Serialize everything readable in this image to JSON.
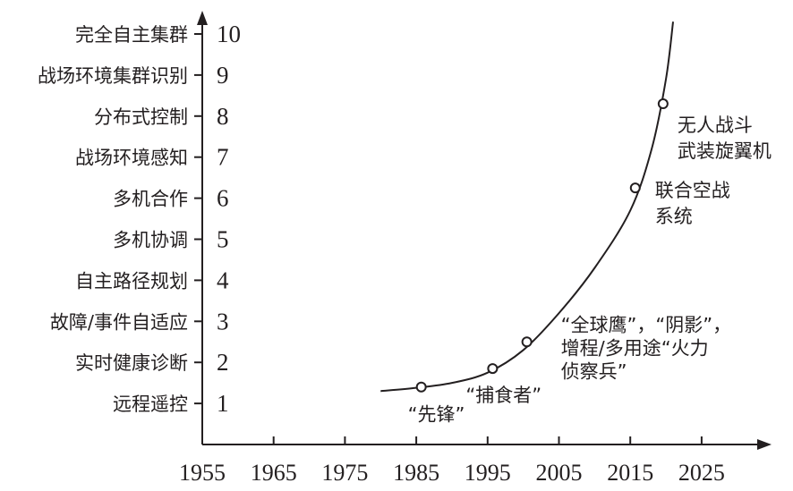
{
  "chart_data": {
    "type": "scatter",
    "title": "",
    "xlabel": "",
    "ylabel": "",
    "xlim": [
      1955,
      2035
    ],
    "ylim": [
      0,
      10.8
    ],
    "x_ticks": [
      "1955",
      "1965",
      "1975",
      "1985",
      "1995",
      "2005",
      "2015",
      "2025"
    ],
    "y_ticks": [
      {
        "value": 1,
        "num": "1",
        "label": "远程遥控"
      },
      {
        "value": 2,
        "num": "2",
        "label": "实时健康诊断"
      },
      {
        "value": 3,
        "num": "3",
        "label": "故障/事件自适应"
      },
      {
        "value": 4,
        "num": "4",
        "label": "自主路径规划"
      },
      {
        "value": 5,
        "num": "5",
        "label": "多机协调"
      },
      {
        "value": 6,
        "num": "6",
        "label": "多机合作"
      },
      {
        "value": 7,
        "num": "7",
        "label": "战场环境感知"
      },
      {
        "value": 8,
        "num": "8",
        "label": "分布式控制"
      },
      {
        "value": 9,
        "num": "9",
        "label": "战场环境集群识别"
      },
      {
        "value": 10,
        "num": "10",
        "label": "完全自主集群"
      }
    ],
    "trend_curve": [
      {
        "x": 1980,
        "y": 1.3
      },
      {
        "x": 1985,
        "y": 1.38
      },
      {
        "x": 1990,
        "y": 1.5
      },
      {
        "x": 1995,
        "y": 1.75
      },
      {
        "x": 2000,
        "y": 2.3
      },
      {
        "x": 2005,
        "y": 3.2
      },
      {
        "x": 2010,
        "y": 4.3
      },
      {
        "x": 2015,
        "y": 5.7
      },
      {
        "x": 2018,
        "y": 7.2
      },
      {
        "x": 2020,
        "y": 8.9
      },
      {
        "x": 2021,
        "y": 10.3
      }
    ],
    "points": [
      {
        "x": 1985.7,
        "y": 1.4,
        "lines": [
          "“先锋”"
        ]
      },
      {
        "x": 1995.7,
        "y": 1.85,
        "lines": [
          "“捕食者”"
        ]
      },
      {
        "x": 2000.5,
        "y": 2.5,
        "lines": [
          "“全球鹰”，“阴影”，",
          "增程/多用途“火力",
          "侦察兵”"
        ]
      },
      {
        "x": 2015.7,
        "y": 6.25,
        "lines": [
          "联合空战",
          "系统"
        ]
      },
      {
        "x": 2019.6,
        "y": 8.3,
        "lines": [
          "无人战斗",
          "武装旋翼机"
        ]
      }
    ],
    "colors": {
      "ink": "#231f20",
      "background": "#ffffff"
    },
    "grid": false,
    "legend": "none"
  }
}
